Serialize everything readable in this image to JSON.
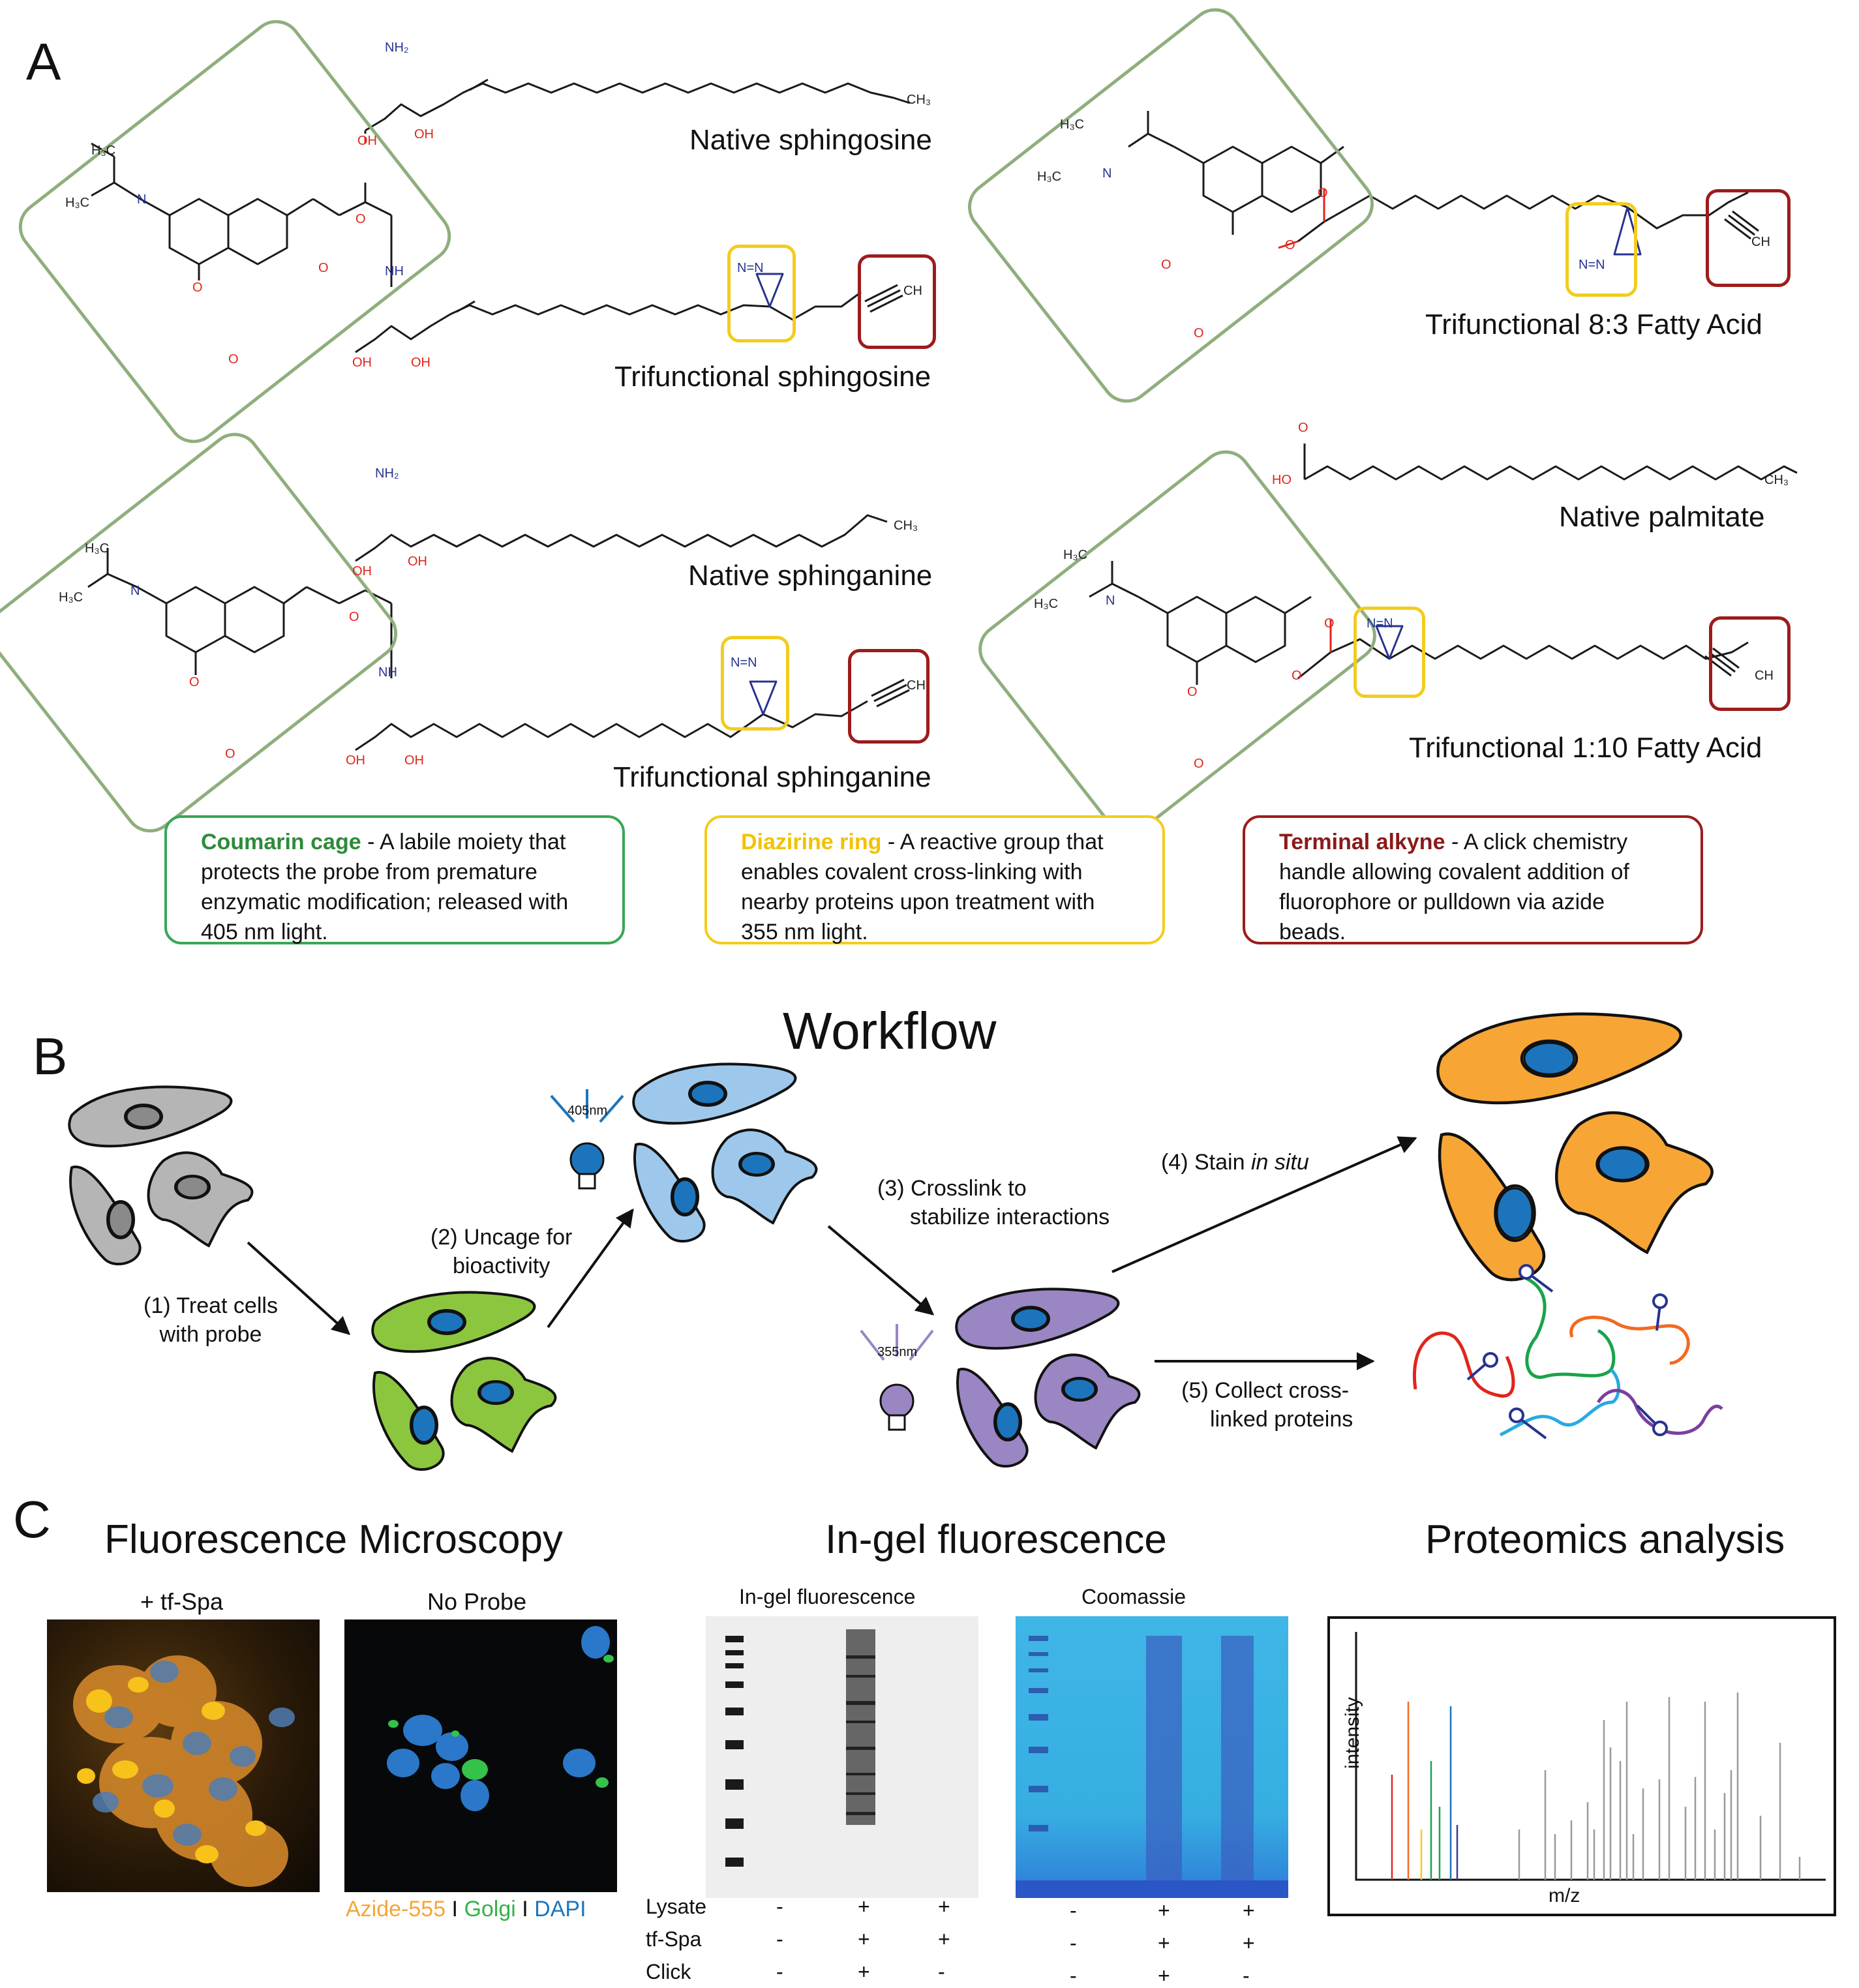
{
  "panels": {
    "a": "A",
    "b": "B",
    "c": "C"
  },
  "panel_a": {
    "molecules": {
      "native_sphingosine": "Native sphingosine",
      "trifunctional_sphingosine": "Trifunctional sphingosine",
      "native_sphinganine": "Native sphinganine",
      "trifunctional_sphinganine": "Trifunctional sphinganine",
      "trifunctional_83": "Trifunctional 8:3 Fatty Acid",
      "native_palmitate": "Native palmitate",
      "trifunctional_110": "Trifunctional 1:10 Fatty Acid"
    },
    "atoms": {
      "nh2": "NH₂",
      "oh": "OH",
      "ch3": "CH₃",
      "h3c": "H₃C",
      "n": "N",
      "o": "O",
      "nh": "NH",
      "ch": "CH",
      "n_eq_n": "N=N",
      "ho": "HO"
    },
    "legend": {
      "coumarin": {
        "title": "Coumarin cage",
        "text": " - A labile moiety that protects the probe from premature enzymatic modification; released with 405 nm light.",
        "color": "#2e8b3a",
        "border": "#3aa655"
      },
      "diazirine": {
        "title": "Diazirine ring",
        "text": " - A reactive group that enables covalent cross-linking with nearby proteins upon treatment with 355 nm light.",
        "color": "#f2c200",
        "border": "#f2cc1f"
      },
      "alkyne": {
        "title": "Terminal alkyne",
        "text": " - A click chemistry handle allowing covalent addition of fluorophore or pulldown via azide beads.",
        "color": "#8b1a1a",
        "border": "#9c1c1c"
      }
    }
  },
  "panel_b": {
    "title": "Workflow",
    "step1": [
      "(1) Treat cells",
      "with probe"
    ],
    "step2": [
      "(2) Uncage for",
      "bioactivity"
    ],
    "step3": [
      "(3) Crosslink to",
      "stabilize interactions"
    ],
    "step4_prefix": "(4) Stain ",
    "step4_italic": "in situ",
    "step5": [
      "(5) Collect cross-",
      "linked proteins"
    ],
    "bulb1_label": "405nm",
    "bulb2_label": "355nm",
    "colors": {
      "gray": "#b5b5b5",
      "green": "#8cc63f",
      "blue": "#9dc8ec",
      "purple": "#9a86c2",
      "orange": "#f7a535",
      "nucleus": "#1c75bc"
    }
  },
  "panel_c": {
    "titles": {
      "microscopy": "Fluorescence Microscopy",
      "gel": "In-gel fluorescence",
      "proteomics": "Proteomics analysis"
    },
    "micro_labels": {
      "left": "+ tf-Spa",
      "right": "No Probe"
    },
    "stain_legend": {
      "azide": "Azide-555",
      "sep": " I ",
      "golgi": "Golgi",
      "dapi": "DAPI"
    },
    "gel_labels": {
      "fluor": "In-gel fluorescence",
      "coomassie": "Coomassie"
    },
    "gel_rows": [
      {
        "label": "Lysate",
        "fluor": [
          "-",
          "+",
          "+"
        ],
        "coom": [
          "-",
          "+",
          "+"
        ]
      },
      {
        "label": "tf-Spa",
        "fluor": [
          "-",
          "+",
          "+"
        ],
        "coom": [
          "-",
          "+",
          "+"
        ]
      },
      {
        "label": "Click",
        "fluor": [
          "-",
          "+",
          "-"
        ],
        "coom": [
          "-",
          "+",
          "-"
        ]
      }
    ],
    "axes": {
      "y": "intensity",
      "x": "m/z"
    }
  }
}
